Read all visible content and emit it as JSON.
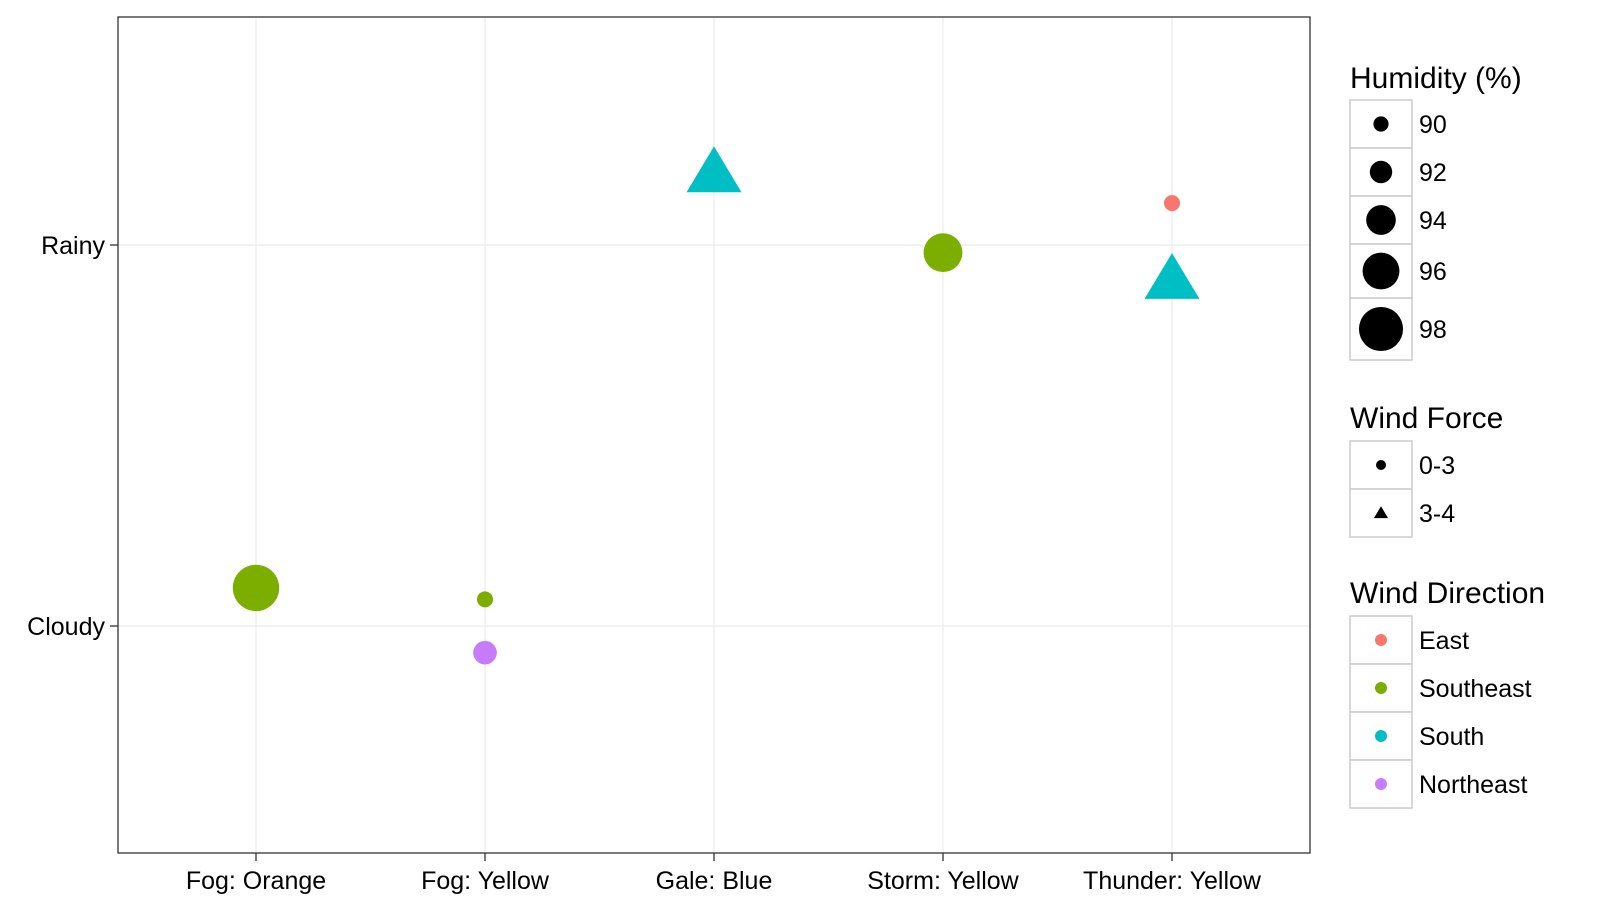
{
  "chart_data": {
    "type": "scatter",
    "x_categories": [
      "Fog: Orange",
      "Fog: Yellow",
      "Gale: Blue",
      "Storm: Yellow",
      "Thunder: Yellow"
    ],
    "y_categories": [
      "Cloudy",
      "Rainy"
    ],
    "grid": true,
    "legend_position": "right",
    "points": [
      {
        "x": "Fog: Orange",
        "y": 0.1,
        "humidity": 98,
        "wind_force": "0-3",
        "wind_direction": "Southeast"
      },
      {
        "x": "Fog: Yellow",
        "y": 0.07,
        "humidity": 90,
        "wind_force": "0-3",
        "wind_direction": "Southeast"
      },
      {
        "x": "Fog: Yellow",
        "y": -0.07,
        "humidity": 92,
        "wind_force": "0-3",
        "wind_direction": "Northeast"
      },
      {
        "x": "Gale: Blue",
        "y": 1.19,
        "humidity": 96,
        "wind_force": "3-4",
        "wind_direction": "South"
      },
      {
        "x": "Storm: Yellow",
        "y": 0.98,
        "humidity": 96,
        "wind_force": "0-3",
        "wind_direction": "Southeast"
      },
      {
        "x": "Thunder: Yellow",
        "y": 1.11,
        "humidity": 90,
        "wind_force": "0-3",
        "wind_direction": "East"
      },
      {
        "x": "Thunder: Yellow",
        "y": 0.91,
        "humidity": 96,
        "wind_force": "3-4",
        "wind_direction": "South"
      }
    ],
    "legends": {
      "humidity": {
        "title": "Humidity (%)",
        "items": [
          {
            "label": "90",
            "value": 90
          },
          {
            "label": "92",
            "value": 92
          },
          {
            "label": "94",
            "value": 94
          },
          {
            "label": "96",
            "value": 96
          },
          {
            "label": "98",
            "value": 98
          }
        ]
      },
      "wind_force": {
        "title": "Wind Force",
        "items": [
          {
            "label": "0-3",
            "shape": "circle"
          },
          {
            "label": "3-4",
            "shape": "triangle"
          }
        ]
      },
      "wind_direction": {
        "title": "Wind Direction",
        "items": [
          {
            "label": "East",
            "color": "#F8766D"
          },
          {
            "label": "Southeast",
            "color": "#7CAE00"
          },
          {
            "label": "South",
            "color": "#00BFC4"
          },
          {
            "label": "Northeast",
            "color": "#C77CFF"
          }
        ]
      }
    },
    "colors": {
      "panel_border": "#333333",
      "grid": "#EBEBEB",
      "legend_key_border": "#CCCCCC"
    }
  }
}
